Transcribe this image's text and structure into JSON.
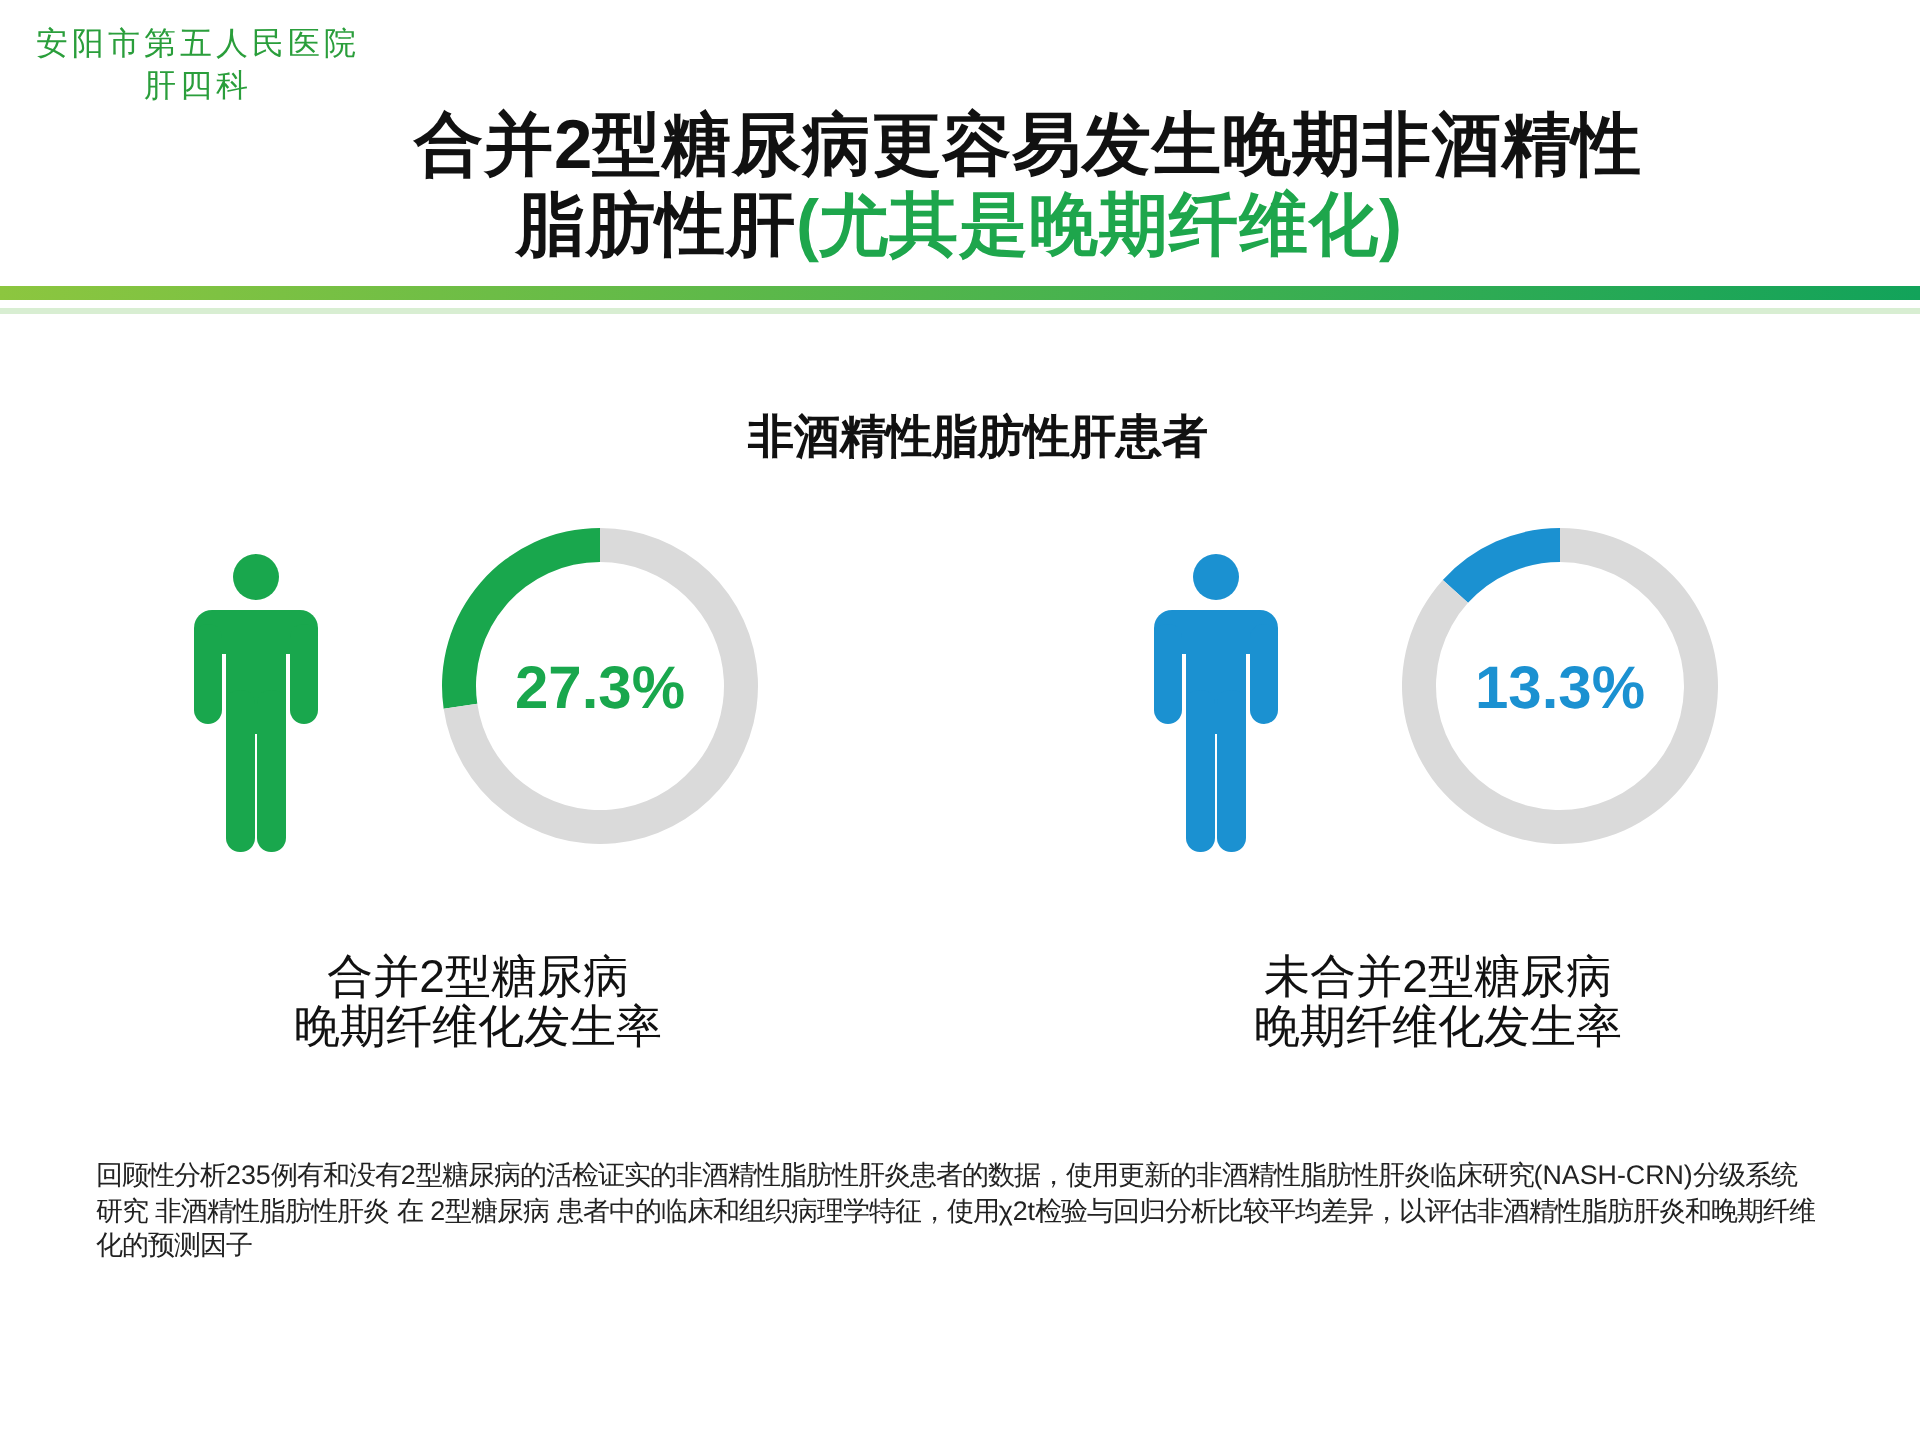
{
  "chart_data": [
    {
      "type": "other",
      "title": "合并2型糖尿病更容易发生晚期非酒精性脂肪性肝(尤其是晚期纤维化)",
      "annotations": [
        "安阳市第五人民医院肝四科",
        "非酒精性脂肪性肝患者",
        "回顾性分析235例有和没有2型糖尿病的活检证实的非酒精性脂肪性肝炎患者的数据，使用更新的非酒精性脂肪性肝炎临床研究(NASH-CRN)分级系统研究 非酒精性脂肪性肝炎 在 2型糖尿病 患者中的临床和组织病理学特征，使用χ2t检验与回归分析比较平均差异，以评估非酒精性脂肪肝炎和晚期纤维化的预测因子"
      ]
    },
    {
      "type": "donut",
      "categories": [
        null,
        null
      ],
      "values": [
        27.3,
        72.7
      ],
      "colors": [
        "#19a74d",
        "#dadada"
      ],
      "annotations": [
        "27.3%"
      ],
      "xlabel": "合并2型糖尿病晚期纤维化发生率"
    },
    {
      "type": "donut",
      "categories": [
        null,
        null
      ],
      "values": [
        13.3,
        86.7
      ],
      "colors": [
        "#1b91d1",
        "#dadada"
      ],
      "annotations": [
        "13.3%"
      ],
      "xlabel": "未合并2型糖尿病晚期纤维化发生率"
    }
  ]
}
